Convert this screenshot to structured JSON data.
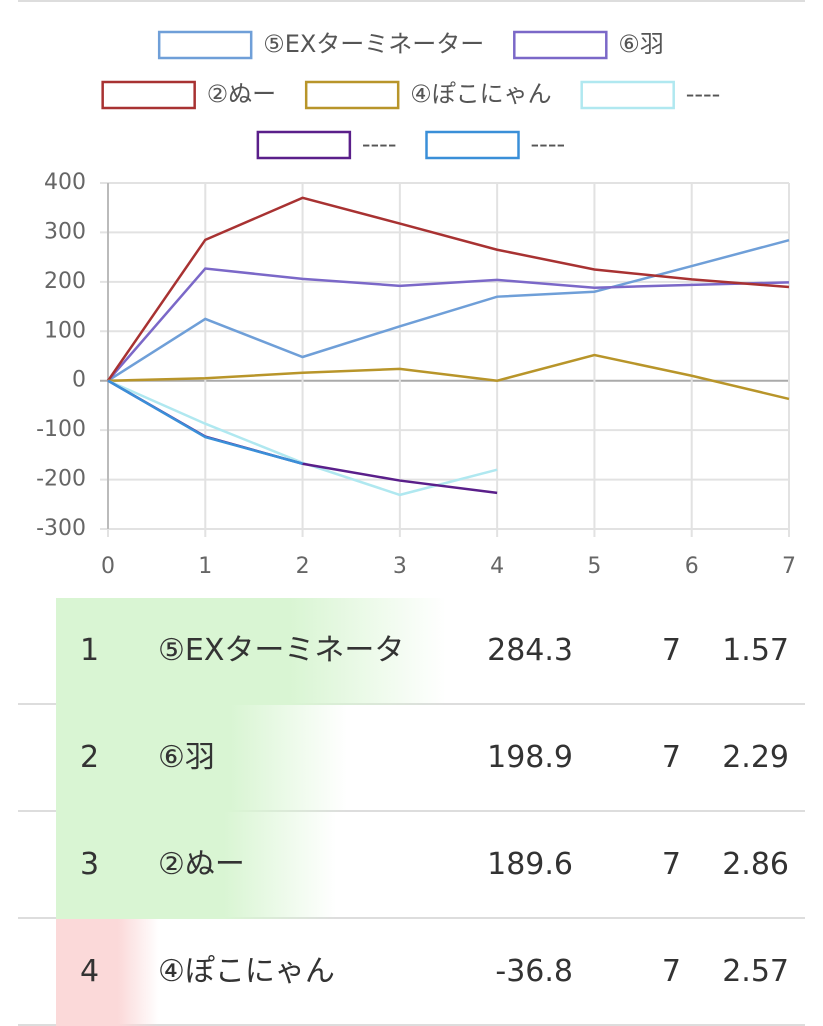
{
  "chart_data": {
    "type": "line",
    "x": [
      0,
      1,
      2,
      3,
      4,
      5,
      6,
      7
    ],
    "series": [
      {
        "name": "⑤EXターミネーター",
        "color": "#6f9fd8",
        "values": [
          0,
          125,
          48,
          110,
          170,
          180,
          232,
          284.3
        ]
      },
      {
        "name": "⑥羽",
        "color": "#7b68c8",
        "values": [
          0,
          227,
          206,
          192,
          204,
          188,
          194,
          198.9
        ]
      },
      {
        "name": "②ぬー",
        "color": "#a83232",
        "values": [
          0,
          285,
          370,
          318,
          265,
          225,
          205,
          189.6
        ]
      },
      {
        "name": "④ぽこにゃん",
        "color": "#b8952a",
        "values": [
          0,
          5,
          16,
          24,
          0,
          52,
          10,
          -36.8
        ]
      },
      {
        "name": "----",
        "color": "#b0e8f0",
        "values": [
          0,
          -87,
          -166,
          -231,
          -180,
          null,
          null,
          null
        ]
      },
      {
        "name": "----",
        "color": "#5a1f8a",
        "values": [
          0,
          -113,
          -168,
          -202,
          -227,
          null,
          null,
          null
        ]
      },
      {
        "name": "----",
        "color": "#3a8fd8",
        "values": [
          0,
          -114,
          -168,
          null,
          null,
          null,
          null,
          null
        ]
      }
    ],
    "xlim": [
      0,
      7
    ],
    "xticks": [
      0,
      1,
      2,
      3,
      4,
      5,
      6,
      7
    ],
    "ylim": [
      -300,
      400
    ],
    "yticks": [
      -300,
      -200,
      -100,
      0,
      100,
      200,
      300,
      400
    ],
    "grid": true,
    "legend": "top"
  },
  "table": {
    "rows": [
      [
        1,
        "⑤EXターミネータ",
        284.3,
        7,
        1.57
      ],
      [
        2,
        "⑥羽",
        198.9,
        7,
        2.29
      ],
      [
        3,
        "②ぬー",
        189.6,
        7,
        2.86
      ],
      [
        4,
        "④ぽこにゃん",
        -36.8,
        7,
        2.57
      ]
    ]
  }
}
